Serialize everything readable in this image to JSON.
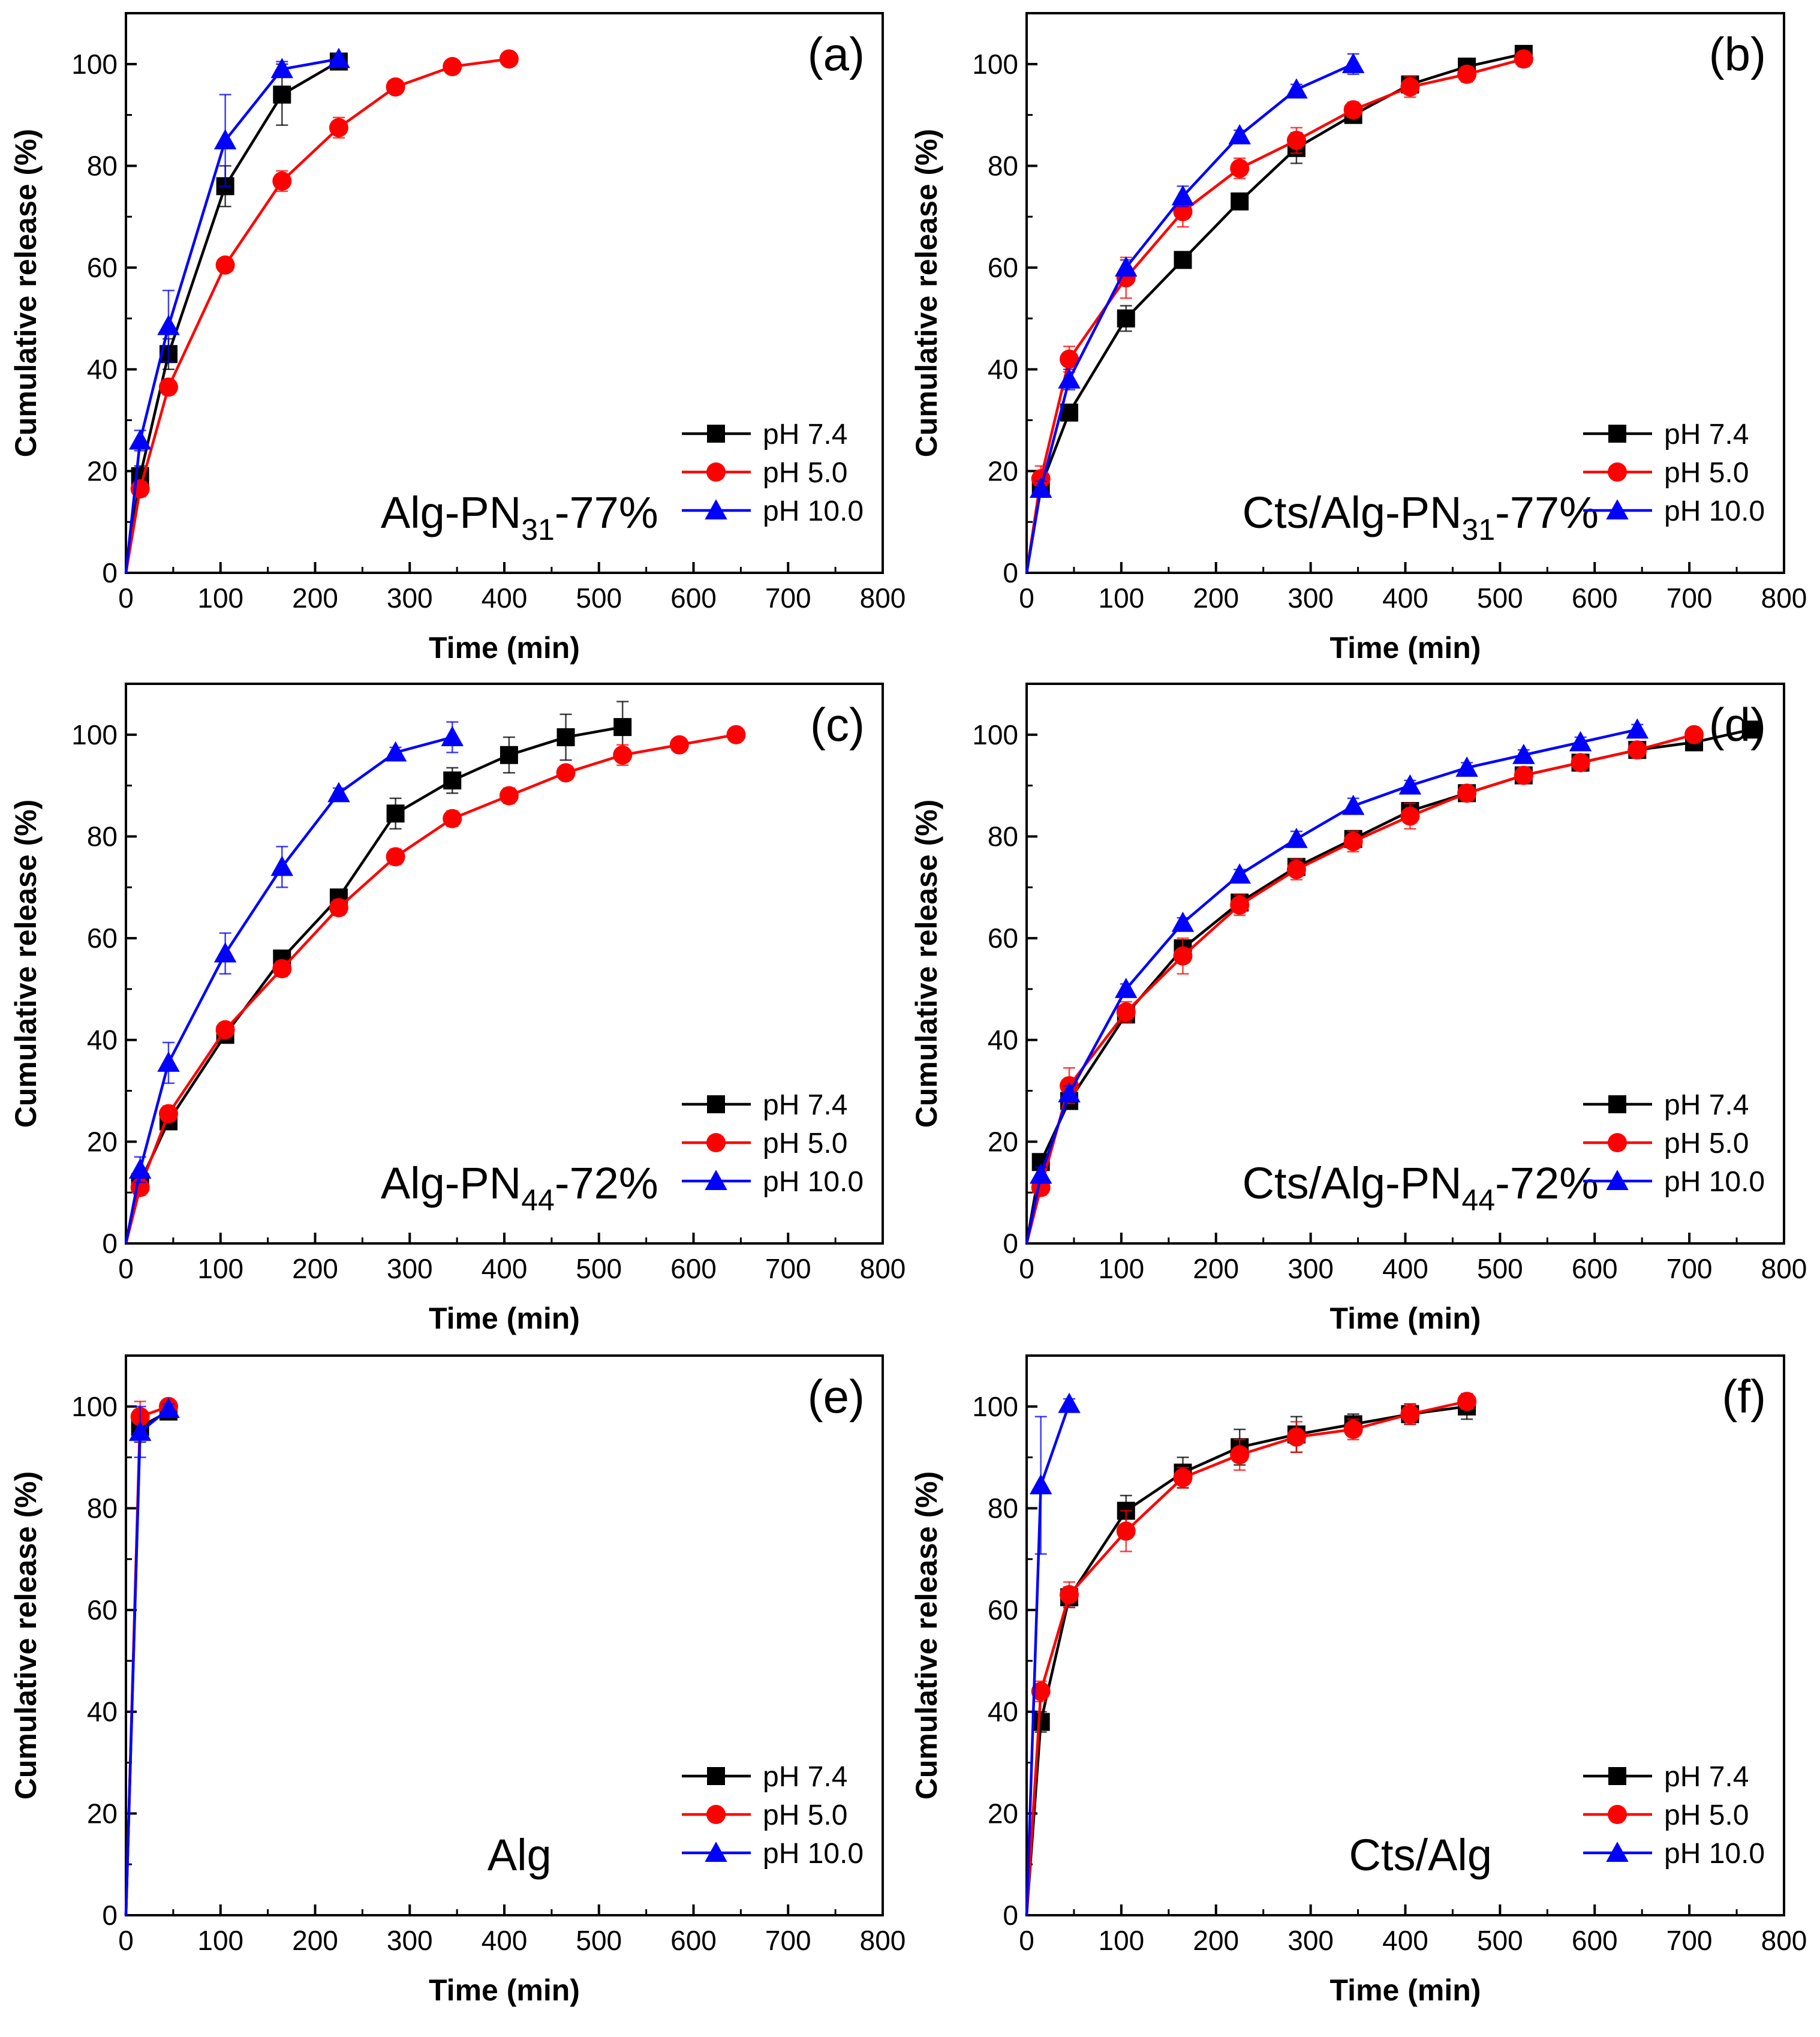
{
  "figure": {
    "background": "#ffffff"
  },
  "series_style": {
    "pH 7.4": {
      "color": "#000000",
      "marker": "square"
    },
    "pH 5.0": {
      "color": "#ff0000",
      "marker": "circle"
    },
    "pH 10.0": {
      "color": "#0000ff",
      "marker": "triangle"
    }
  },
  "chart_data": [
    {
      "type": "line",
      "panel": "(a)",
      "sample_label": {
        "main": "Alg-PN",
        "sub": "31",
        "tail": "-77%"
      },
      "xlabel": "Time (min)",
      "ylabel": "Cumulative release (%)",
      "xlim": [
        0,
        800
      ],
      "ylim": [
        0,
        110
      ],
      "xticks": [
        0,
        100,
        200,
        300,
        400,
        500,
        600,
        700,
        800
      ],
      "yticks": [
        0,
        20,
        40,
        60,
        80,
        100
      ],
      "legend": "bottom-right",
      "series": [
        {
          "name": "pH 7.4",
          "x": [
            0,
            15,
            45,
            105,
            165,
            225
          ],
          "y": [
            0,
            19,
            43,
            76,
            94,
            100.5
          ],
          "err": [
            0,
            2,
            3,
            4,
            6,
            1
          ]
        },
        {
          "name": "pH 5.0",
          "x": [
            0,
            15,
            45,
            105,
            165,
            225,
            285,
            345,
            405
          ],
          "y": [
            0,
            16.5,
            36.5,
            60.5,
            77,
            87.5,
            95.5,
            99.5,
            101
          ],
          "err": [
            0,
            1.5,
            1.5,
            1,
            2,
            2,
            1,
            1,
            1
          ]
        },
        {
          "name": "pH 10.0",
          "x": [
            0,
            15,
            45,
            105,
            165,
            225
          ],
          "y": [
            0,
            26,
            48.5,
            85,
            99,
            101
          ],
          "err": [
            0,
            2,
            7,
            9,
            1.5,
            1
          ]
        }
      ]
    },
    {
      "type": "line",
      "panel": "(b)",
      "sample_label": {
        "main": "Cts/Alg-PN",
        "sub": "31",
        "tail": "-77%"
      },
      "xlabel": "Time (min)",
      "ylabel": "Cumulative release (%)",
      "xlim": [
        0,
        800
      ],
      "ylim": [
        0,
        110
      ],
      "xticks": [
        0,
        100,
        200,
        300,
        400,
        500,
        600,
        700,
        800
      ],
      "yticks": [
        0,
        20,
        40,
        60,
        80,
        100
      ],
      "legend": "bottom-right",
      "series": [
        {
          "name": "pH 7.4",
          "x": [
            0,
            15,
            45,
            105,
            165,
            225,
            285,
            345,
            405,
            465,
            525
          ],
          "y": [
            0,
            17,
            31.5,
            50,
            61.5,
            73,
            83.5,
            90,
            96,
            99.5,
            102
          ],
          "err": [
            0,
            2,
            1.5,
            2.5,
            1.5,
            1.5,
            3,
            1.5,
            1.5,
            1,
            1
          ]
        },
        {
          "name": "pH 5.0",
          "x": [
            0,
            15,
            45,
            105,
            165,
            225,
            285,
            345,
            405,
            465,
            525
          ],
          "y": [
            0,
            18.5,
            42,
            58,
            71,
            79.5,
            85,
            91,
            95.5,
            98,
            101
          ],
          "err": [
            0,
            2.5,
            2.5,
            4,
            3,
            2,
            2.5,
            1.5,
            2,
            1.5,
            1.5
          ]
        },
        {
          "name": "pH 10.0",
          "x": [
            0,
            15,
            45,
            105,
            165,
            225,
            285,
            345
          ],
          "y": [
            0,
            16.5,
            38,
            60,
            74,
            86,
            95,
            100
          ],
          "err": [
            0,
            1.5,
            2,
            1.5,
            2,
            1,
            1,
            2
          ]
        }
      ]
    },
    {
      "type": "line",
      "panel": "(c)",
      "sample_label": {
        "main": "Alg-PN",
        "sub": "44",
        "tail": "-72%"
      },
      "xlabel": "Time (min)",
      "ylabel": "Cumulative release (%)",
      "xlim": [
        0,
        800
      ],
      "ylim": [
        0,
        110
      ],
      "xticks": [
        0,
        100,
        200,
        300,
        400,
        500,
        600,
        700,
        800
      ],
      "yticks": [
        0,
        20,
        40,
        60,
        80,
        100
      ],
      "legend": "bottom-right",
      "series": [
        {
          "name": "pH 7.4",
          "x": [
            0,
            15,
            45,
            105,
            165,
            225,
            285,
            345,
            405,
            465,
            525
          ],
          "y": [
            0,
            12,
            24,
            41,
            56,
            68,
            84.5,
            91,
            96,
            99.5,
            101.5
          ],
          "err": [
            0,
            1.5,
            1.5,
            1,
            1,
            1.5,
            3,
            2.5,
            3.5,
            4.5,
            5
          ]
        },
        {
          "name": "pH 5.0",
          "x": [
            0,
            15,
            45,
            105,
            165,
            225,
            285,
            345,
            405,
            465,
            525,
            585,
            645
          ],
          "y": [
            0,
            11,
            25.5,
            42,
            54,
            66,
            76,
            83.5,
            88,
            92.5,
            96,
            98,
            100
          ],
          "err": [
            0,
            1.5,
            1.5,
            1,
            1.5,
            1.5,
            1.5,
            1.5,
            1.5,
            1,
            2,
            1,
            1
          ]
        },
        {
          "name": "pH 10.0",
          "x": [
            0,
            15,
            45,
            105,
            165,
            225,
            285,
            345
          ],
          "y": [
            0,
            14.5,
            35.5,
            57,
            74,
            88.5,
            96.5,
            99.5
          ],
          "err": [
            0,
            2.5,
            4,
            4,
            4,
            1,
            1,
            3
          ]
        }
      ]
    },
    {
      "type": "line",
      "panel": "(d)",
      "sample_label": {
        "main": "Cts/Alg-PN",
        "sub": "44",
        "tail": "-72%"
      },
      "xlabel": "Time (min)",
      "ylabel": "Cumulative release (%)",
      "xlim": [
        0,
        800
      ],
      "ylim": [
        0,
        110
      ],
      "xticks": [
        0,
        100,
        200,
        300,
        400,
        500,
        600,
        700,
        800
      ],
      "yticks": [
        0,
        20,
        40,
        60,
        80,
        100
      ],
      "legend": "bottom-right",
      "series": [
        {
          "name": "pH 7.4",
          "x": [
            0,
            15,
            45,
            105,
            165,
            225,
            285,
            345,
            405,
            465,
            525,
            585,
            645,
            705,
            765
          ],
          "y": [
            0,
            16,
            28,
            45,
            58,
            67,
            74,
            79.5,
            85,
            88.5,
            92,
            94.5,
            97,
            98.5,
            101
          ],
          "err": [
            0,
            1.5,
            1.5,
            1.5,
            1.5,
            1.5,
            1.5,
            1.5,
            1.5,
            1.5,
            1,
            1,
            1,
            1,
            1
          ]
        },
        {
          "name": "pH 5.0",
          "x": [
            0,
            15,
            45,
            105,
            165,
            225,
            285,
            345,
            405,
            465,
            525,
            585,
            645,
            705
          ],
          "y": [
            0,
            11,
            31,
            45.5,
            56.5,
            66.5,
            73.5,
            79,
            84,
            88.5,
            92,
            94.5,
            97,
            100
          ],
          "err": [
            0,
            1.5,
            3.5,
            2,
            3.5,
            2,
            2,
            2,
            2.5,
            1.5,
            1.5,
            1,
            1,
            1
          ]
        },
        {
          "name": "pH 10.0",
          "x": [
            0,
            15,
            45,
            105,
            165,
            225,
            285,
            345,
            405,
            465,
            525,
            585,
            645
          ],
          "y": [
            0,
            13.5,
            29.5,
            50,
            63,
            72.5,
            79.5,
            86,
            90,
            93.5,
            96,
            98.5,
            101
          ],
          "err": [
            0,
            1.5,
            1.5,
            1,
            1,
            1,
            1.5,
            1.5,
            1,
            1,
            1,
            1,
            1
          ]
        }
      ]
    },
    {
      "type": "line",
      "panel": "(e)",
      "sample_label": {
        "main": "Alg",
        "sub": "",
        "tail": ""
      },
      "xlabel": "Time (min)",
      "ylabel": "Cumulative release (%)",
      "xlim": [
        0,
        800
      ],
      "ylim": [
        0,
        110
      ],
      "xticks": [
        0,
        100,
        200,
        300,
        400,
        500,
        600,
        700,
        800
      ],
      "yticks": [
        0,
        20,
        40,
        60,
        80,
        100
      ],
      "legend": "bottom-right",
      "series": [
        {
          "name": "pH 7.4",
          "x": [
            0,
            15,
            45
          ],
          "y": [
            0,
            96,
            99
          ],
          "err": [
            0,
            3,
            1
          ]
        },
        {
          "name": "pH 5.0",
          "x": [
            0,
            15,
            45
          ],
          "y": [
            0,
            98,
            100
          ],
          "err": [
            0,
            3,
            1
          ]
        },
        {
          "name": "pH 10.0",
          "x": [
            0,
            15,
            45
          ],
          "y": [
            0,
            95,
            99.5
          ],
          "err": [
            0,
            5,
            1
          ]
        }
      ]
    },
    {
      "type": "line",
      "panel": "(f)",
      "sample_label": {
        "main": "Cts/Alg",
        "sub": "",
        "tail": ""
      },
      "xlabel": "Time (min)",
      "ylabel": "Cumulative release (%)",
      "xlim": [
        0,
        800
      ],
      "ylim": [
        0,
        110
      ],
      "xticks": [
        0,
        100,
        200,
        300,
        400,
        500,
        600,
        700,
        800
      ],
      "yticks": [
        0,
        20,
        40,
        60,
        80,
        100
      ],
      "legend": "bottom-right",
      "series": [
        {
          "name": "pH 7.4",
          "x": [
            0,
            15,
            45,
            105,
            165,
            225,
            285,
            345,
            405,
            465
          ],
          "y": [
            0,
            38,
            62.5,
            79.5,
            87,
            92,
            94.5,
            96.5,
            98.5,
            100
          ],
          "err": [
            0,
            2,
            2,
            3,
            3,
            3.5,
            3.5,
            2,
            2,
            2.5
          ]
        },
        {
          "name": "pH 5.0",
          "x": [
            0,
            15,
            45,
            105,
            165,
            225,
            285,
            345,
            405,
            465
          ],
          "y": [
            0,
            44,
            63,
            75.5,
            86,
            90.5,
            94,
            95.5,
            98.5,
            101
          ],
          "err": [
            0,
            2,
            2.5,
            4,
            2,
            3,
            3,
            2,
            2,
            1.5
          ]
        },
        {
          "name": "pH 10.0",
          "x": [
            0,
            15,
            45
          ],
          "y": [
            0,
            84.5,
            100.5
          ],
          "err": [
            0,
            13.5,
            1
          ]
        }
      ]
    }
  ]
}
